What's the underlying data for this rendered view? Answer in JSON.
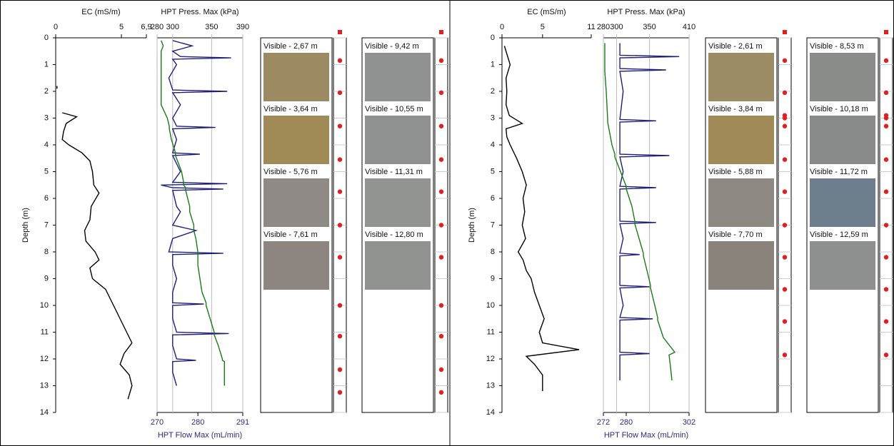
{
  "chart_data": [
    {
      "type": "line",
      "orientation": "vertical",
      "xlabel": "Depth (m)",
      "xlim": [
        0,
        14
      ],
      "xticks": [
        0,
        1,
        2,
        3,
        4,
        5,
        6,
        7,
        8,
        9,
        10,
        11,
        12,
        13,
        14
      ],
      "ylabel": "EC (mS/m)",
      "ylim": [
        0,
        6.9
      ],
      "yticks": [
        0,
        5,
        {
          "value": 6.9,
          "label": "6,9"
        }
      ],
      "x": [
        1.8,
        1.9,
        2.3,
        2.8,
        2.95,
        3.2,
        3.5,
        3.8,
        4.0,
        4.3,
        4.6,
        5.0,
        5.5,
        5.8,
        6.3,
        6.8,
        7.2,
        7.6,
        8.0,
        8.3,
        8.6,
        9.0,
        9.4,
        9.8,
        10.2,
        10.6,
        11.0,
        11.4,
        11.8,
        12.2,
        12.6,
        13.0,
        13.5
      ],
      "series": [
        {
          "color": "#000000",
          "values": [
            0.1,
            0.1,
            null,
            0.5,
            1.6,
            0.8,
            0.6,
            0.5,
            1.0,
            2.0,
            2.6,
            2.8,
            2.9,
            3.3,
            2.7,
            2.6,
            2.2,
            2.3,
            3.0,
            3.3,
            2.6,
            2.8,
            3.8,
            4.2,
            4.6,
            5.0,
            5.4,
            5.8,
            5.2,
            4.9,
            5.6,
            5.8,
            5.5
          ]
        }
      ]
    },
    {
      "type": "line",
      "orientation": "vertical",
      "xlim": [
        0,
        14
      ],
      "ylabel": "HPT Press. Max (kPa)",
      "ylim": [
        280,
        390
      ],
      "yticks": [
        280,
        300,
        350,
        390
      ],
      "y2label": "HPT Flow Max (mL/min)",
      "y2lim": [
        270,
        291
      ],
      "y2ticks": [
        270,
        280,
        291
      ],
      "x": [
        0.1,
        0.3,
        0.5,
        0.7,
        0.75,
        0.8,
        1.0,
        1.5,
        1.95,
        2.0,
        2.05,
        2.5,
        3.0,
        3.3,
        3.35,
        3.4,
        3.8,
        4.3,
        4.35,
        4.4,
        5.0,
        5.4,
        5.45,
        5.5,
        5.6,
        5.65,
        5.7,
        6.3,
        6.5,
        7.0,
        7.2,
        7.5,
        8.0,
        8.05,
        8.1,
        8.5,
        9.0,
        9.5,
        9.9,
        9.95,
        10.0,
        10.5,
        11.0,
        11.05,
        11.1,
        11.5,
        12.0,
        12.05,
        12.1,
        12.5,
        13.0
      ],
      "series": [
        {
          "color": "#1f1f7a",
          "values": [
            300,
            325,
            300,
            310,
            375,
            300,
            305,
            295,
            300,
            370,
            300,
            310,
            300,
            305,
            355,
            300,
            305,
            300,
            335,
            300,
            310,
            300,
            370,
            285,
            300,
            365,
            300,
            305,
            310,
            300,
            330,
            300,
            295,
            365,
            300,
            300,
            305,
            300,
            300,
            340,
            300,
            300,
            305,
            372,
            300,
            300,
            305,
            330,
            300,
            300,
            305
          ]
        },
        {
          "color": "#1a7a1a",
          "axis": "y2",
          "values": [
            271,
            271.5,
            271,
            271,
            271,
            271,
            271,
            271,
            271,
            271,
            271,
            271,
            272.5,
            273,
            273,
            273,
            273.5,
            274.5,
            274.5,
            274.5,
            276,
            276.5,
            276.5,
            276.5,
            277,
            277,
            277,
            278,
            278,
            279,
            279,
            279.5,
            280,
            280,
            280,
            280,
            280.5,
            281,
            282,
            282,
            282,
            283,
            284,
            284,
            284,
            285,
            286,
            286,
            286.5,
            286.5,
            286.5
          ]
        }
      ]
    },
    {
      "type": "line",
      "orientation": "vertical",
      "xlabel": "Depth (m)",
      "xlim": [
        0,
        14
      ],
      "xticks": [
        0,
        1,
        2,
        3,
        4,
        5,
        6,
        7,
        8,
        9,
        10,
        11,
        12,
        13,
        14
      ],
      "ylabel": "EC (mS/m)",
      "ylim": [
        0,
        11
      ],
      "yticks": [
        0,
        5,
        11
      ],
      "x": [
        0.3,
        0.6,
        1.0,
        1.5,
        2.0,
        2.5,
        2.9,
        3.2,
        3.4,
        3.7,
        4.0,
        4.5,
        5.0,
        5.5,
        6.0,
        6.5,
        7.0,
        7.5,
        8.0,
        8.3,
        8.7,
        9.0,
        9.5,
        10.0,
        10.5,
        11.0,
        11.4,
        11.65,
        11.9,
        12.2,
        12.6,
        13.2
      ],
      "series": [
        {
          "color": "#000000",
          "values": [
            0.3,
            0.6,
            1.0,
            0.5,
            0.6,
            0.5,
            0.9,
            2.5,
            0.5,
            0.6,
            1.0,
            1.8,
            2.5,
            3.0,
            2.6,
            2.8,
            2.5,
            2.9,
            2.0,
            2.6,
            3.0,
            3.6,
            4.0,
            4.6,
            5.2,
            4.6,
            5.0,
            9.5,
            3.0,
            4.0,
            5.0,
            5.0
          ]
        }
      ]
    },
    {
      "type": "line",
      "orientation": "vertical",
      "xlim": [
        0,
        14
      ],
      "ylabel": "HPT Press. Max (kPa)",
      "ylim": [
        280,
        410
      ],
      "yticks": [
        280,
        300,
        350,
        410
      ],
      "y2label": "HPT Flow Max (mL/min)",
      "y2lim": [
        272,
        302
      ],
      "y2ticks": [
        272,
        280,
        302
      ],
      "x": [
        0.2,
        0.65,
        0.7,
        0.75,
        1.15,
        1.2,
        1.25,
        2.0,
        3.05,
        3.1,
        3.15,
        4.0,
        4.35,
        4.4,
        4.45,
        5.0,
        5.55,
        5.6,
        5.65,
        6.3,
        6.85,
        6.9,
        6.95,
        7.5,
        8.05,
        8.1,
        8.15,
        8.8,
        9.25,
        9.3,
        9.35,
        10.0,
        10.45,
        10.5,
        10.55,
        11.2,
        11.75,
        11.8,
        11.85,
        12.3,
        12.8
      ],
      "series": [
        {
          "color": "#1f1f7a",
          "values": [
            305,
            305,
            395,
            305,
            305,
            375,
            305,
            310,
            305,
            360,
            305,
            305,
            305,
            380,
            305,
            310,
            305,
            360,
            305,
            305,
            305,
            360,
            305,
            310,
            305,
            335,
            305,
            305,
            305,
            350,
            305,
            310,
            305,
            355,
            305,
            305,
            305,
            350,
            305,
            305,
            305
          ]
        },
        {
          "color": "#1a7a1a",
          "axis": "y2",
          "values": [
            272.5,
            272.5,
            272.5,
            272.5,
            272.5,
            272.5,
            272.5,
            273,
            273.5,
            273.5,
            273.5,
            275,
            276,
            276,
            276,
            278,
            280,
            280,
            280,
            282,
            283,
            283,
            283,
            284.5,
            286,
            286,
            286,
            287.5,
            288.5,
            288.5,
            288.5,
            290,
            291,
            291,
            291,
            293,
            297,
            296,
            295,
            295.5,
            296
          ]
        }
      ]
    }
  ],
  "image_logs": [
    [
      {
        "images": [
          {
            "label": "Visible - 2,67 m",
            "color": "#9c8a62"
          },
          {
            "label": "Visible - 3,64 m",
            "color": "#a08a55"
          },
          {
            "label": "Visible - 5,76 m",
            "color": "#8f8a85"
          },
          {
            "label": "Visible - 7,61 m",
            "color": "#8c8580"
          }
        ],
        "markers": [
          0.85,
          2.05,
          3.3,
          4.55,
          5.75,
          7.0,
          8.2,
          10.0,
          11.15,
          12.4,
          13.25
        ],
        "marker_color": "#e02020"
      },
      {
        "images": [
          {
            "label": "Visible - 9,42 m",
            "color": "#8f9290"
          },
          {
            "label": "Visible - 10,55 m",
            "color": "#8e918f"
          },
          {
            "label": "Visible - 11,31 m",
            "color": "#92948f"
          },
          {
            "label": "Visible - 12,80 m",
            "color": "#90938f"
          }
        ],
        "markers": [
          0.85,
          2.05,
          3.3,
          4.55,
          5.75,
          7.0,
          8.2,
          10.0,
          11.15,
          12.4,
          13.25
        ],
        "marker_color": "#e02020"
      }
    ],
    [
      {
        "images": [
          {
            "label": "Visible - 2,61 m",
            "color": "#9c8c66"
          },
          {
            "label": "Visible - 3,84 m",
            "color": "#a08b58"
          },
          {
            "label": "Visible - 5,88 m",
            "color": "#8e8983"
          },
          {
            "label": "Visible - 7,70 m",
            "color": "#8a837c"
          }
        ],
        "markers": [
          0.85,
          2.05,
          2.9,
          3.0,
          3.3,
          4.55,
          5.75,
          7.0,
          8.2,
          9.4,
          10.6,
          11.85
        ],
        "marker_color": "#e02020"
      },
      {
        "images": [
          {
            "label": "Visible - 8,53 m",
            "color": "#8a8c8a"
          },
          {
            "label": "Visible - 10,18 m",
            "color": "#878a89"
          },
          {
            "label": "Visible - 11,72 m",
            "color": "#6f7e8c"
          },
          {
            "label": "Visible - 12,59 m",
            "color": "#8d908e"
          }
        ],
        "markers": [
          0.85,
          2.05,
          2.9,
          3.0,
          3.3,
          4.55,
          5.75,
          7.0,
          8.2,
          9.4,
          10.6,
          11.85
        ],
        "marker_color": "#e02020"
      }
    ]
  ]
}
